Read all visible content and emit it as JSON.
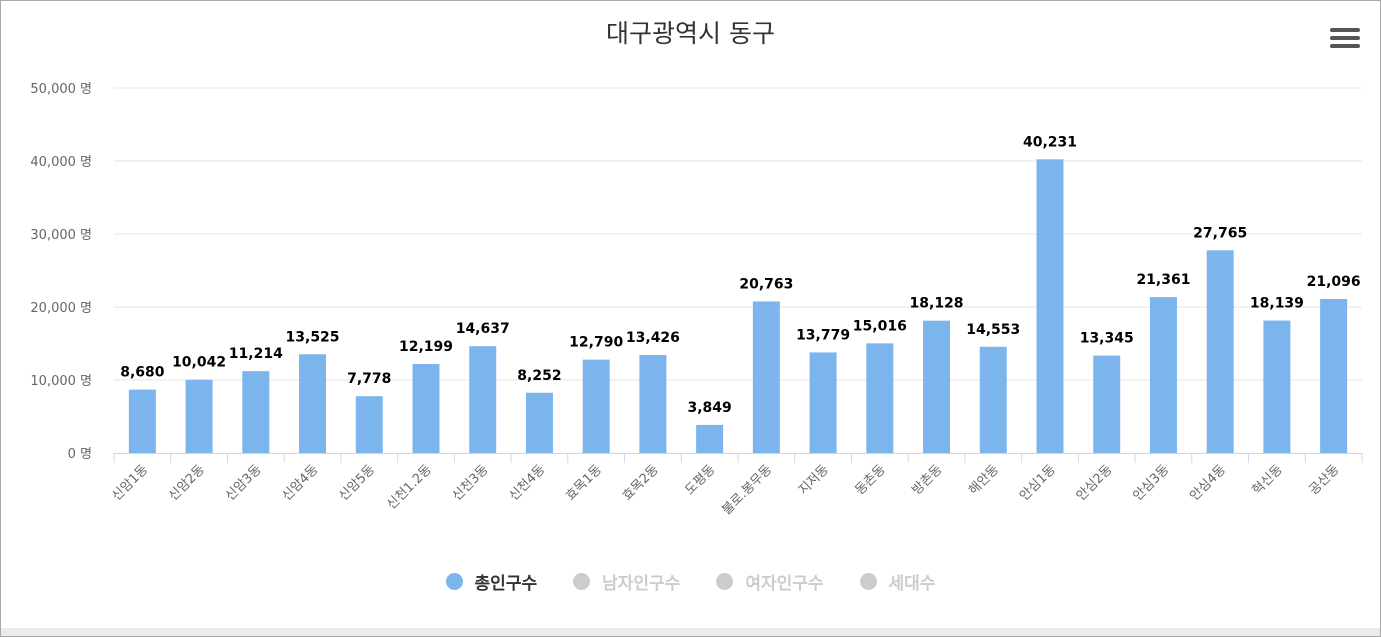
{
  "chart_data": {
    "type": "bar",
    "title": "대구광역시 동구",
    "categories": [
      "신암1동",
      "신암2동",
      "신암3동",
      "신암4동",
      "신암5동",
      "신천1.2동",
      "신천3동",
      "신천4동",
      "효목1동",
      "효목2동",
      "도평동",
      "불로.봉무동",
      "지저동",
      "동촌동",
      "방촌동",
      "해안동",
      "안심1동",
      "안심2동",
      "안심3동",
      "안심4동",
      "혁신동",
      "공산동"
    ],
    "series": [
      {
        "name": "총인구수",
        "values": [
          8680,
          10042,
          11214,
          13525,
          7778,
          12199,
          14637,
          8252,
          12790,
          13426,
          3849,
          20763,
          13779,
          15016,
          18128,
          14553,
          40231,
          13345,
          21361,
          27765,
          18139,
          21096
        ],
        "active": true
      }
    ],
    "value_labels": [
      "8,680",
      "10,042",
      "11,214",
      "13,525",
      "7,778",
      "12,199",
      "14,637",
      "8,252",
      "12,790",
      "13,426",
      "3,849",
      "20,763",
      "13,779",
      "15,016",
      "18,128",
      "14,553",
      "40,231",
      "13,345",
      "21,361",
      "27,765",
      "18,139",
      "21,096"
    ],
    "y_ticks": [
      "0 명",
      "10,000 명",
      "20,000 명",
      "30,000 명",
      "40,000 명",
      "50,000 명"
    ],
    "ylim": [
      0,
      50000
    ],
    "grid": true,
    "legend_position": "bottom",
    "bar_color": "#7cb5ec"
  },
  "legend": [
    {
      "label": "총인구수",
      "active": true,
      "color": "#7cb5ec"
    },
    {
      "label": "남자인구수",
      "active": false,
      "color": "#cccccc"
    },
    {
      "label": "여자인구수",
      "active": false,
      "color": "#cccccc"
    },
    {
      "label": "세대수",
      "active": false,
      "color": "#cccccc"
    }
  ],
  "menu_icon": "hamburger-icon"
}
